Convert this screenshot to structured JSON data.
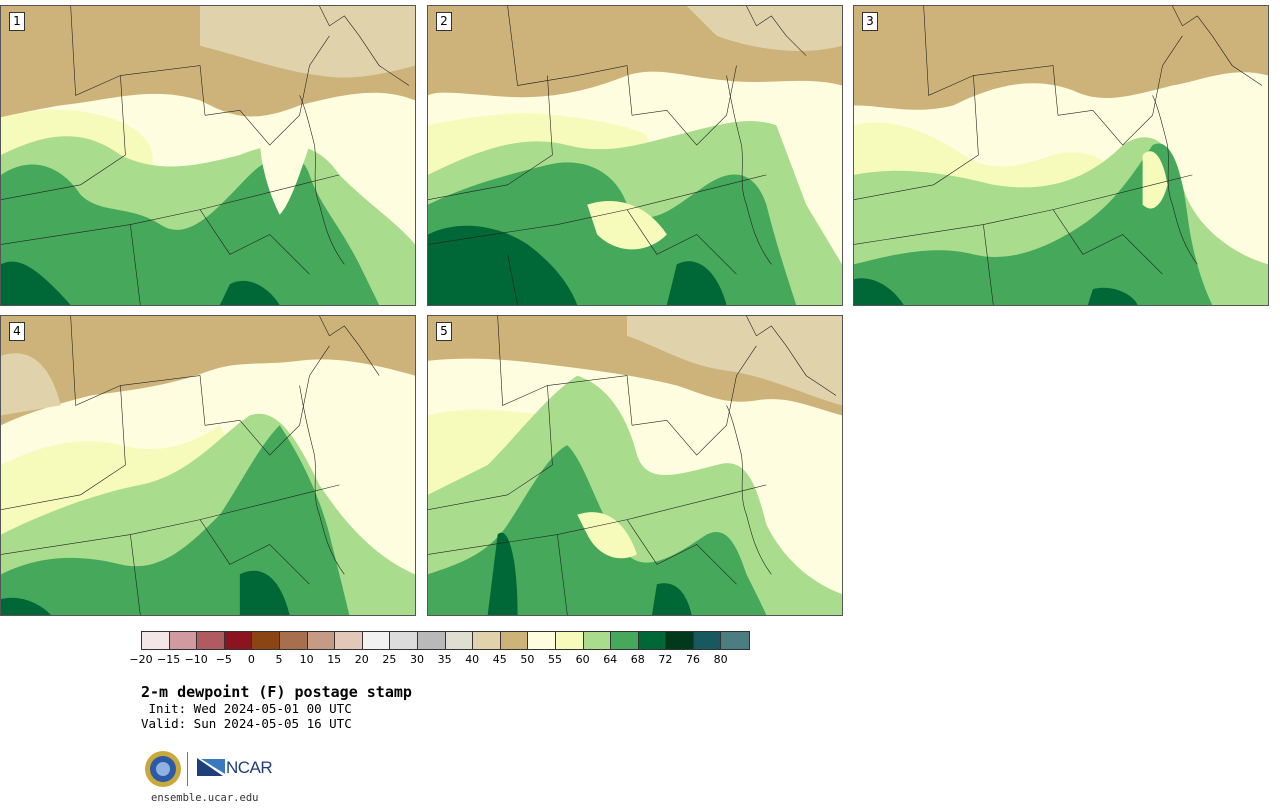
{
  "panels": [
    {
      "label": "1"
    },
    {
      "label": "2"
    },
    {
      "label": "3"
    },
    {
      "label": "4"
    },
    {
      "label": "5"
    }
  ],
  "colorbar": {
    "colors": [
      "#f3e6e6",
      "#d09aa0",
      "#b05a62",
      "#8c1420",
      "#8b4513",
      "#a86f4f",
      "#c79a85",
      "#e3c7b8",
      "#f2f2f2",
      "#dcdcdc",
      "#b9b9b9",
      "#dfdfd1",
      "#e0d3ac",
      "#cdb37a",
      "#fffde0",
      "#f6fbbb",
      "#a9dc8c",
      "#45a85a",
      "#006837",
      "#00391c",
      "#1a5860",
      "#4c7d80"
    ],
    "ticks": [
      "−20",
      "−15",
      "−10",
      "−5",
      "0",
      "5",
      "10",
      "15",
      "20",
      "25",
      "30",
      "35",
      "40",
      "45",
      "50",
      "55",
      "60",
      "64",
      "68",
      "72",
      "76",
      "80"
    ]
  },
  "title": "2-m dewpoint (F) postage stamp",
  "init": " Init: Wed 2024-05-01 00 UTC",
  "valid": "Valid: Sun 2024-05-05 16 UTC",
  "logos": {
    "ncar": "NCAR"
  },
  "site": "ensemble.ucar.edu",
  "map_colors": {
    "dry_tan": "#cdb37a",
    "light_tan": "#e0d3ac",
    "cream": "#fffde0",
    "pale_yellow": "#f6fbbb",
    "light_green": "#a9dc8c",
    "green": "#45a85a",
    "dark_green": "#006837"
  }
}
